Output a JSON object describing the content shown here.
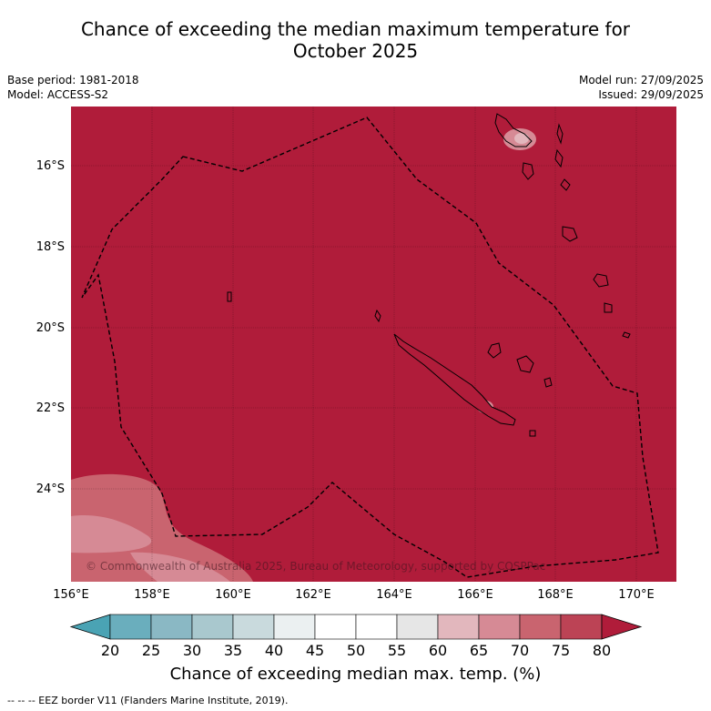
{
  "title": {
    "line1": "Chance of exceeding the median maximum temperature for",
    "line2": "October 2025"
  },
  "meta": {
    "base_period": "Base period: 1981-2018",
    "model": "Model: ACCESS-S2",
    "model_run": "Model run: 27/09/2025",
    "issued": "Issued: 29/09/2025"
  },
  "map": {
    "lat_labels": [
      "16°S",
      "18°S",
      "20°S",
      "22°S",
      "24°S"
    ],
    "lon_labels": [
      "156°E",
      "158°E",
      "160°E",
      "162°E",
      "164°E",
      "166°E",
      "168°E",
      "170°E"
    ],
    "copyright": "© Commonwealth of Australia 2025, Bureau of Meteorology, supported by COSPPac",
    "dominant_color": "#b01c3a"
  },
  "colorbar": {
    "ticks": [
      "20",
      "25",
      "30",
      "35",
      "40",
      "45",
      "50",
      "55",
      "60",
      "65",
      "70",
      "75",
      "80"
    ],
    "colors": [
      "#6aaebd",
      "#8ab8c4",
      "#a9c8ce",
      "#c9dadd",
      "#ebf0f1",
      "#ffffff",
      "#ffffff",
      "#e6e6e6",
      "#e2b7bd",
      "#d68a95",
      "#c9646f",
      "#bc4355"
    ],
    "under_color": "#4aa3b4",
    "over_color": "#b01c3a",
    "label": "Chance of exceeding median max. temp. (%)"
  },
  "footnote": "--  --  -- EEZ border V11 (Flanders Marine Institute, 2019)."
}
